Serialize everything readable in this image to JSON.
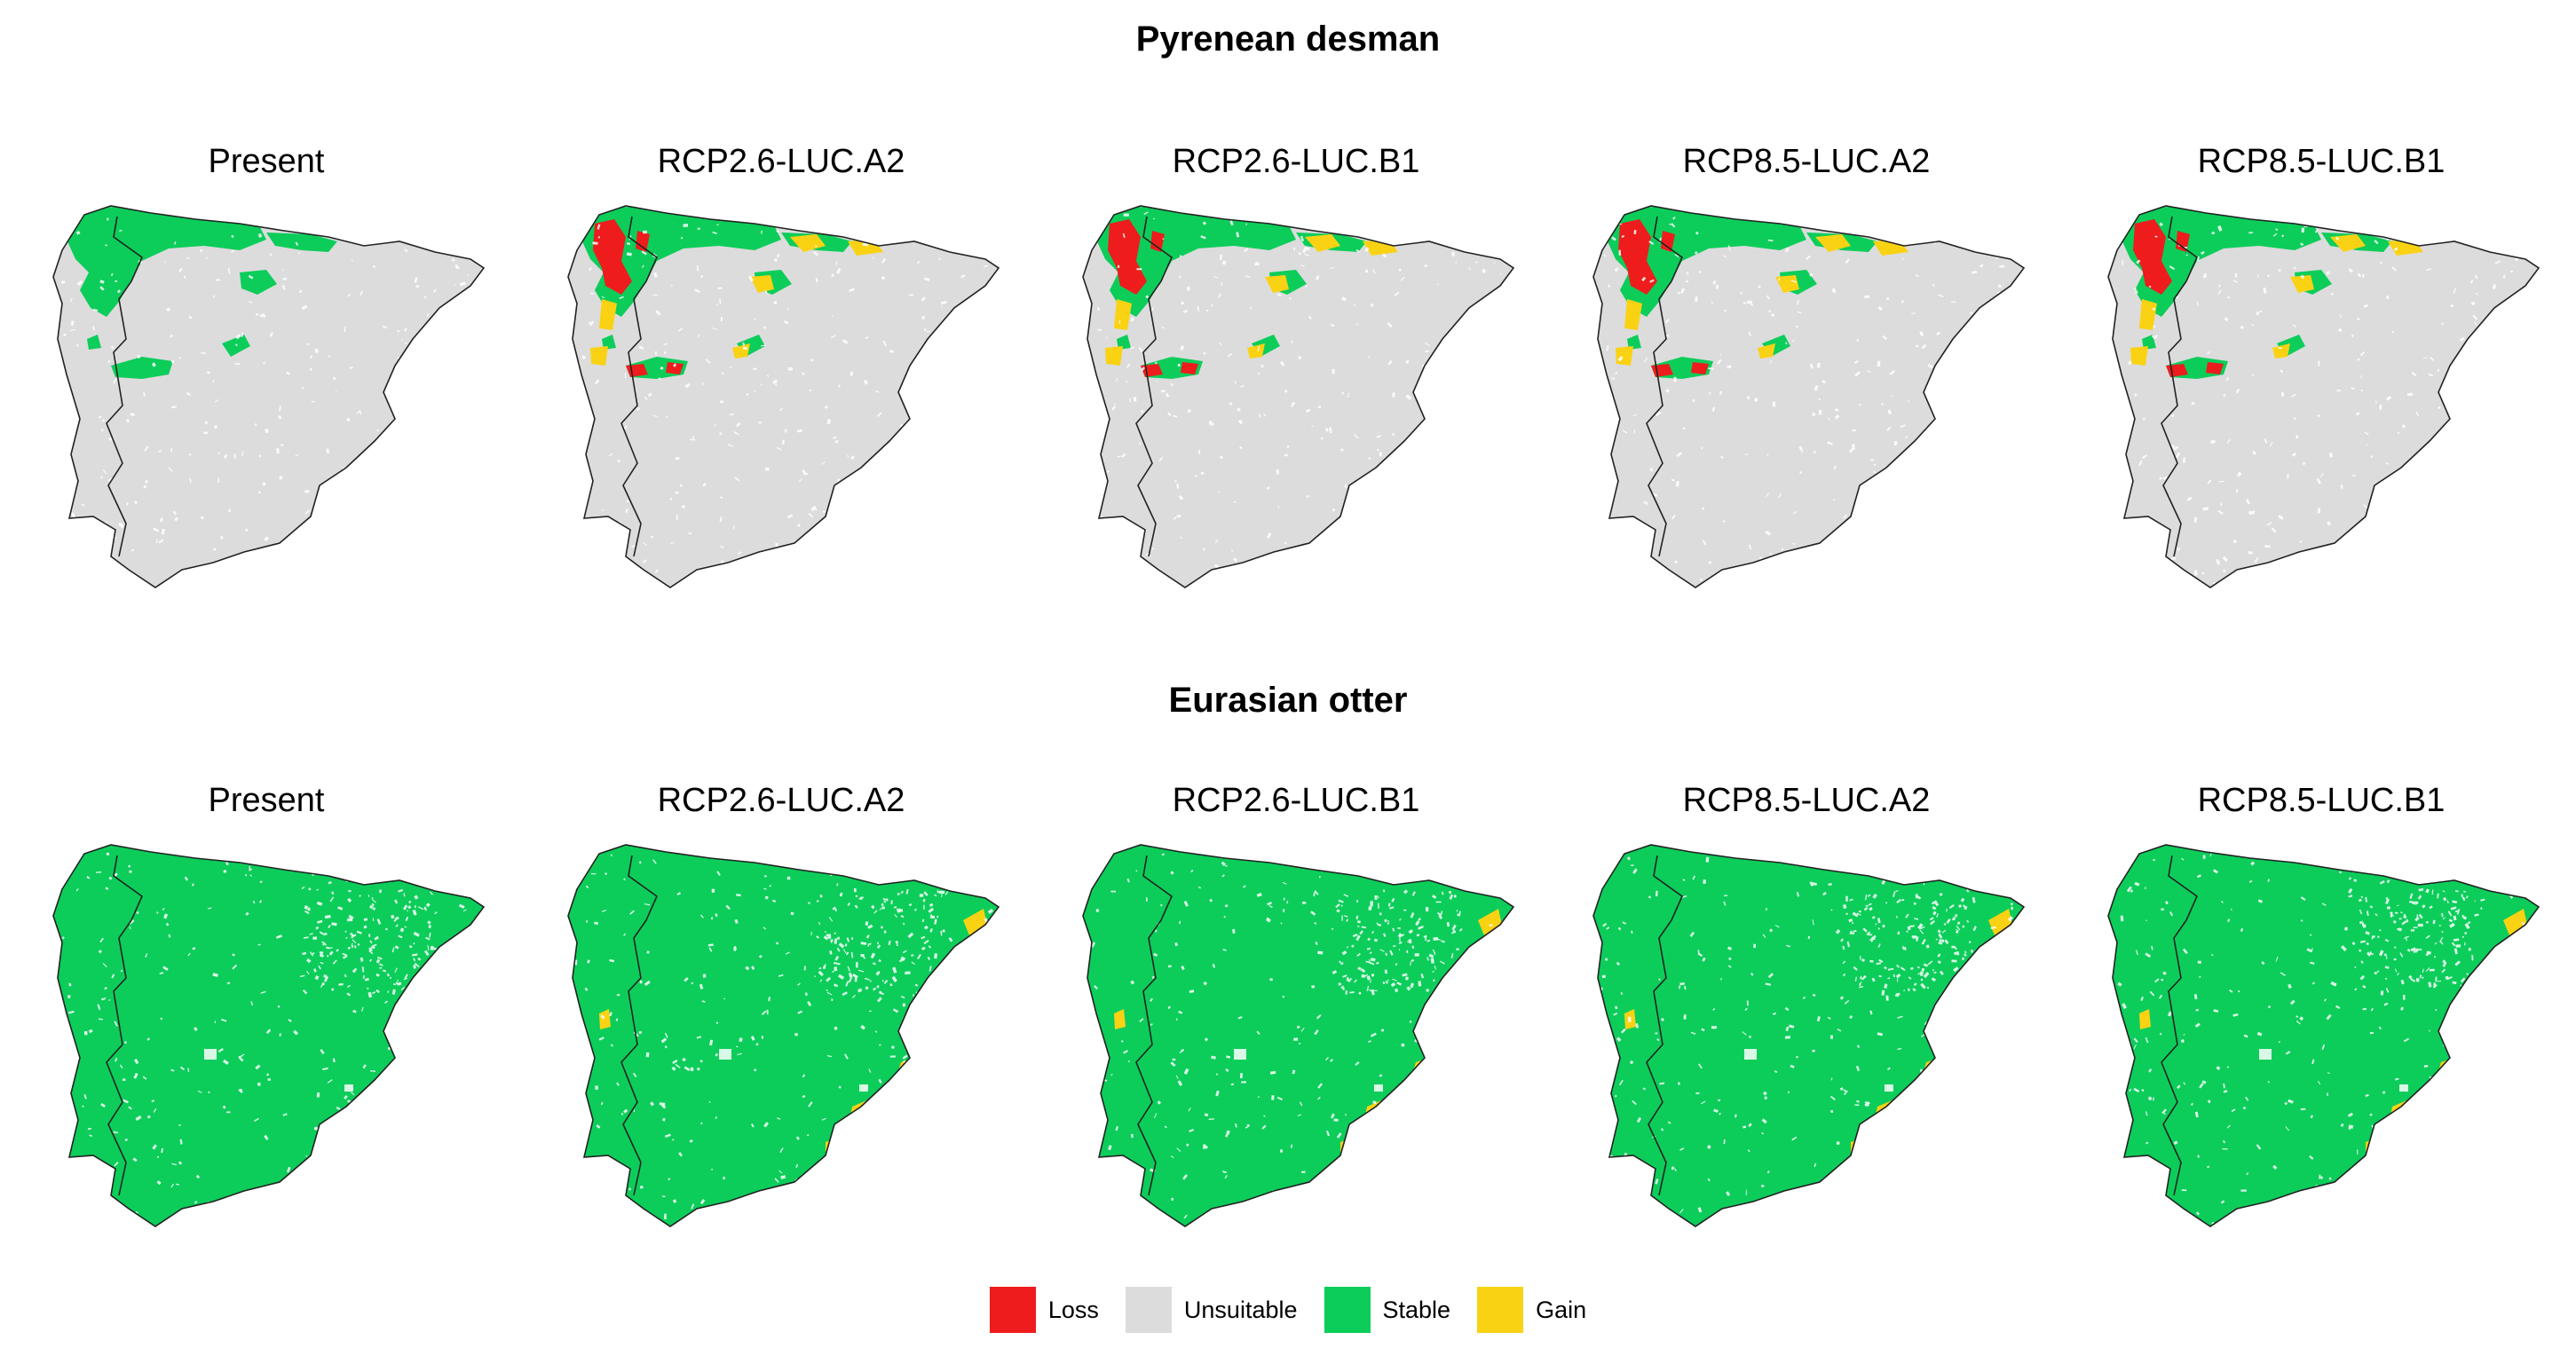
{
  "species": [
    {
      "name": "Pyrenean desman",
      "panels": [
        {
          "label": "Present",
          "stable": "north-band",
          "loss": "none",
          "gain": "none"
        },
        {
          "label": "RCP2.6-LUC.A2",
          "stable": "north-band",
          "loss": "northwest",
          "gain": "north-scattered"
        },
        {
          "label": "RCP2.6-LUC.B1",
          "stable": "north-band",
          "loss": "northwest",
          "gain": "north-scattered"
        },
        {
          "label": "RCP8.5-LUC.A2",
          "stable": "north-band",
          "loss": "northwest",
          "gain": "north-scattered"
        },
        {
          "label": "RCP8.5-LUC.B1",
          "stable": "north-band",
          "loss": "northwest",
          "gain": "north-scattered"
        }
      ]
    },
    {
      "name": "Eurasian otter",
      "panels": [
        {
          "label": "Present",
          "stable": "whole",
          "loss": "none",
          "gain": "none"
        },
        {
          "label": "RCP2.6-LUC.A2",
          "stable": "whole",
          "loss": "none",
          "gain": "east-coast"
        },
        {
          "label": "RCP2.6-LUC.B1",
          "stable": "whole",
          "loss": "none",
          "gain": "east-coast"
        },
        {
          "label": "RCP8.5-LUC.A2",
          "stable": "whole",
          "loss": "none",
          "gain": "east-coast"
        },
        {
          "label": "RCP8.5-LUC.B1",
          "stable": "whole",
          "loss": "none",
          "gain": "east-coast"
        }
      ]
    }
  ],
  "legend": [
    {
      "label": "Loss",
      "color": "#ee1c1c"
    },
    {
      "label": "Unsuitable",
      "color": "#dcdcdc"
    },
    {
      "label": "Stable",
      "color": "#0ccd5a"
    },
    {
      "label": "Gain",
      "color": "#fad214"
    }
  ],
  "colors": {
    "loss": "#ee1c1c",
    "unsuitable": "#dcdcdc",
    "stable": "#0ccd5a",
    "gain": "#fad214",
    "border": "#222222"
  }
}
